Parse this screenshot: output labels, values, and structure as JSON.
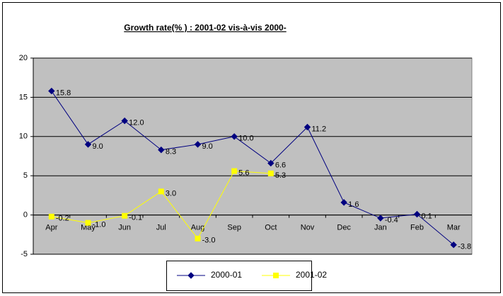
{
  "chart_data": {
    "type": "line",
    "title": "Growth rate(% ) : 2001-02 vis-à-vis 2000-",
    "categories": [
      "Apr",
      "May",
      "Jun",
      "Jul",
      "Aug",
      "Sep",
      "Oct",
      "Nov",
      "Dec",
      "Jan",
      "Feb",
      "Mar"
    ],
    "series": [
      {
        "name": "2000-01",
        "color": "#000080",
        "marker": "diamond",
        "values": [
          15.8,
          9.0,
          12.0,
          8.3,
          9.0,
          10.0,
          6.6,
          11.2,
          1.6,
          -0.4,
          0.1,
          -3.8
        ],
        "value_labels": [
          "15.8",
          "9.0",
          "12.0",
          "8.3",
          "9.0",
          "10.0",
          "6.6",
          "11.2",
          "1.6",
          "-0.4",
          "0.1",
          "-3.8"
        ]
      },
      {
        "name": "2001-02",
        "color": "#ffff00",
        "marker": "square",
        "values": [
          -0.2,
          -1.0,
          -0.1,
          3.0,
          -3.0,
          5.6,
          5.3,
          null,
          null,
          null,
          null,
          null
        ],
        "value_labels": [
          "-0.2",
          "-1.0",
          "-0.1",
          "3.0",
          "-3.0",
          "5.6",
          "5.3",
          null,
          null,
          null,
          null,
          null
        ]
      }
    ],
    "ylim": [
      -5,
      20
    ],
    "yticks": [
      -5,
      0,
      5,
      10,
      15,
      20
    ],
    "grid": true,
    "legend": "bottom"
  }
}
